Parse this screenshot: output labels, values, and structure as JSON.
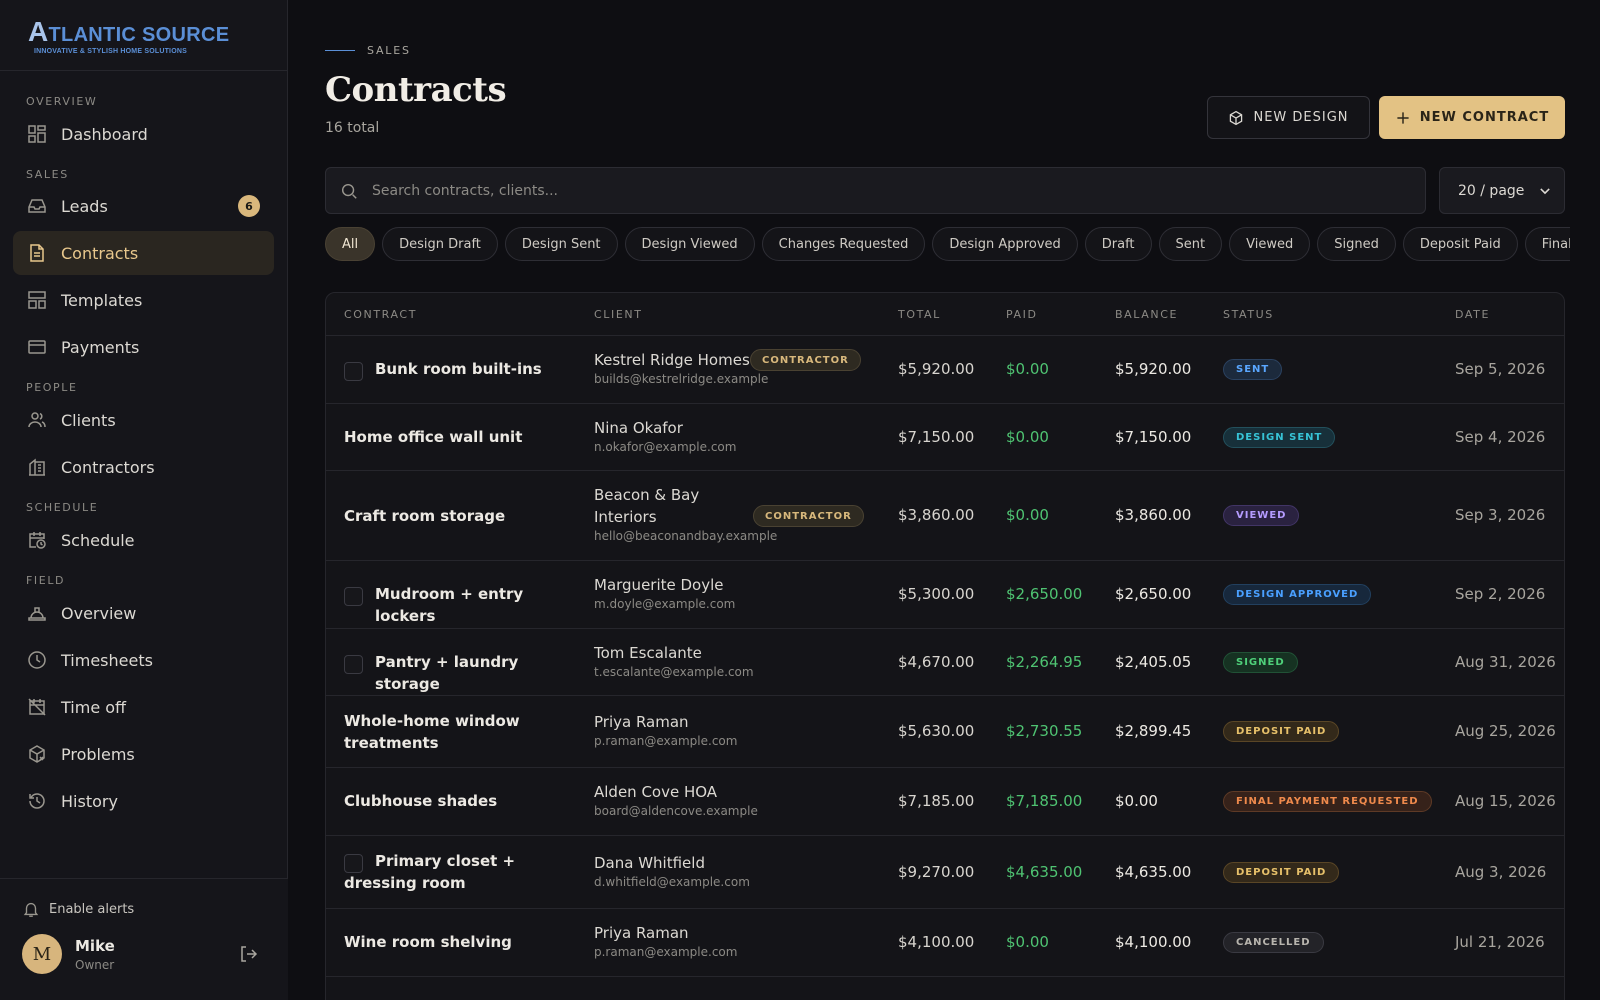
{
  "brand": {
    "name_initial": "A",
    "name_rest": "TLANTIC SOURCE",
    "tagline": "INNOVATIVE & STYLISH HOME SOLUTIONS"
  },
  "sidebar": {
    "sections": {
      "overview": "OVERVIEW",
      "sales": "SALES",
      "people": "PEOPLE",
      "schedule": "SCHEDULE",
      "field": "FIELD"
    },
    "items": {
      "dashboard": "Dashboard",
      "leads": "Leads",
      "leads_count": "6",
      "contracts": "Contracts",
      "templates": "Templates",
      "payments": "Payments",
      "clients": "Clients",
      "contractors": "Contractors",
      "schedule": "Schedule",
      "field_overview": "Overview",
      "timesheets": "Timesheets",
      "time_off": "Time off",
      "problems": "Problems",
      "history": "History"
    },
    "enable_alerts": "Enable alerts",
    "user": {
      "initial": "M",
      "name": "Mike",
      "role": "Owner"
    }
  },
  "header": {
    "eyebrow": "SALES",
    "title": "Contracts",
    "subtitle": "16 total",
    "new_design": "NEW DESIGN",
    "new_contract": "NEW CONTRACT"
  },
  "search": {
    "placeholder": "Search contracts, clients...",
    "value": ""
  },
  "per_page": {
    "selected": "20 / page"
  },
  "filters": [
    "All",
    "Design Draft",
    "Design Sent",
    "Design Viewed",
    "Changes Requested",
    "Design Approved",
    "Draft",
    "Sent",
    "Viewed",
    "Signed",
    "Deposit Paid",
    "Final Payment Requested"
  ],
  "table": {
    "columns": {
      "contract": "CONTRACT",
      "client": "CLIENT",
      "total": "TOTAL",
      "paid": "PAID",
      "balance": "BALANCE",
      "status": "STATUS",
      "date": "DATE"
    },
    "contractor_tag": "CONTRACTOR",
    "rows": [
      {
        "contract": "Bunk room built-ins",
        "client": "Kestrel Ridge Homes",
        "email": "builds@kestrelridge.example",
        "total": "$5,920.00",
        "paid": "$0.00",
        "balance": "$5,920.00",
        "status": "SENT",
        "date": "Sep 5, 2026"
      },
      {
        "contract": "Home office wall unit",
        "client": "Nina Okafor",
        "email": "n.okafor@example.com",
        "total": "$7,150.00",
        "paid": "$0.00",
        "balance": "$7,150.00",
        "status": "DESIGN SENT",
        "date": "Sep 4, 2026"
      },
      {
        "contract": "Craft room storage",
        "client": "Beacon & Bay Interiors",
        "email": "hello@beaconandbay.example",
        "total": "$3,860.00",
        "paid": "$0.00",
        "balance": "$3,860.00",
        "status": "VIEWED",
        "date": "Sep 3, 2026"
      },
      {
        "contract": "Mudroom + entry lockers",
        "client": "Marguerite Doyle",
        "email": "m.doyle@example.com",
        "total": "$5,300.00",
        "paid": "$2,650.00",
        "balance": "$2,650.00",
        "status": "DESIGN APPROVED",
        "date": "Sep 2, 2026"
      },
      {
        "contract": "Pantry + laundry storage",
        "client": "Tom Escalante",
        "email": "t.escalante@example.com",
        "total": "$4,670.00",
        "paid": "$2,264.95",
        "balance": "$2,405.05",
        "status": "SIGNED",
        "date": "Aug 31, 2026"
      },
      {
        "contract": "Whole-home window treatments",
        "client": "Priya Raman",
        "email": "p.raman@example.com",
        "total": "$5,630.00",
        "paid": "$2,730.55",
        "balance": "$2,899.45",
        "status": "DEPOSIT PAID",
        "date": "Aug 25, 2026"
      },
      {
        "contract": "Clubhouse shades",
        "client": "Alden Cove HOA",
        "email": "board@aldencove.example",
        "total": "$7,185.00",
        "paid": "$7,185.00",
        "balance": "$0.00",
        "status": "FINAL PAYMENT REQUESTED",
        "date": "Aug 15, 2026"
      },
      {
        "contract": "Primary closet + dressing room",
        "client": "Dana Whitfield",
        "email": "d.whitfield@example.com",
        "total": "$9,270.00",
        "paid": "$4,635.00",
        "balance": "$4,635.00",
        "status": "DEPOSIT PAID",
        "date": "Aug 3, 2026"
      },
      {
        "contract": "Wine room shelving",
        "client": "Priya Raman",
        "email": "p.raman@example.com",
        "total": "$4,100.00",
        "paid": "$0.00",
        "balance": "$4,100.00",
        "status": "CANCELLED",
        "date": "Jul 21, 2026"
      }
    ]
  },
  "colors": {
    "accent_gold": "#e3c284",
    "status_sent": "#5aa7ff",
    "status_design_sent": "#37c3d6",
    "status_viewed": "#b59cff",
    "status_design_approved": "#4aa0ff",
    "status_signed": "#4fd07a",
    "status_deposit_paid": "#e6c06a",
    "status_final_payment": "#ef8a4c",
    "status_cancelled": "#b8b5ae"
  }
}
